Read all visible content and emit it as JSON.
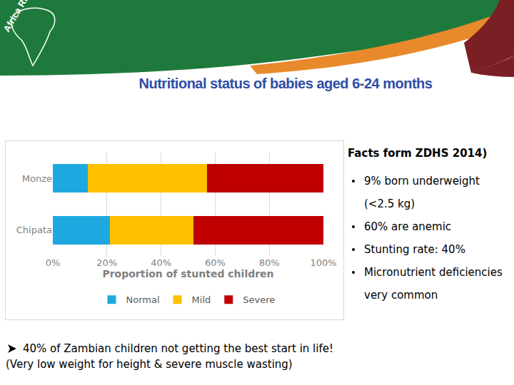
{
  "page": {
    "logo": "Africa RISING",
    "title": "Nutritional status of babies aged 6-24 months",
    "facts_heading": "Facts form ZDHS 2014)",
    "facts": [
      "9% born underweight (<2.5 kg)",
      "60% are anemic",
      "Stunting rate: 40%",
      "Micronutrient deficiencies very common"
    ],
    "note": [
      "40% of Zambian children not getting the best start in life!",
      "(Very low weight for height & severe muscle wasting)"
    ]
  },
  "chart_data": {
    "type": "bar",
    "orientation": "horizontal",
    "stacked": true,
    "categories": [
      "Monze",
      "Chipata"
    ],
    "series": [
      {
        "name": "Normal",
        "color": "#1FA8E0",
        "values": [
          13,
          21
        ]
      },
      {
        "name": "Mild",
        "color": "#FFC000",
        "values": [
          44,
          31
        ]
      },
      {
        "name": "Severe",
        "color": "#C00000",
        "values": [
          43,
          48
        ]
      }
    ],
    "x_label": "Proportion of stunted children",
    "xlim": [
      0,
      100
    ],
    "xticks": [
      {
        "value": 0,
        "label": "0%"
      },
      {
        "value": 20,
        "label": "20%"
      },
      {
        "value": 40,
        "label": "40%"
      },
      {
        "value": 60,
        "label": "60%"
      },
      {
        "value": 80,
        "label": "80%"
      },
      {
        "value": 100,
        "label": "100%"
      }
    ],
    "grid": true,
    "legend": "bottom"
  }
}
